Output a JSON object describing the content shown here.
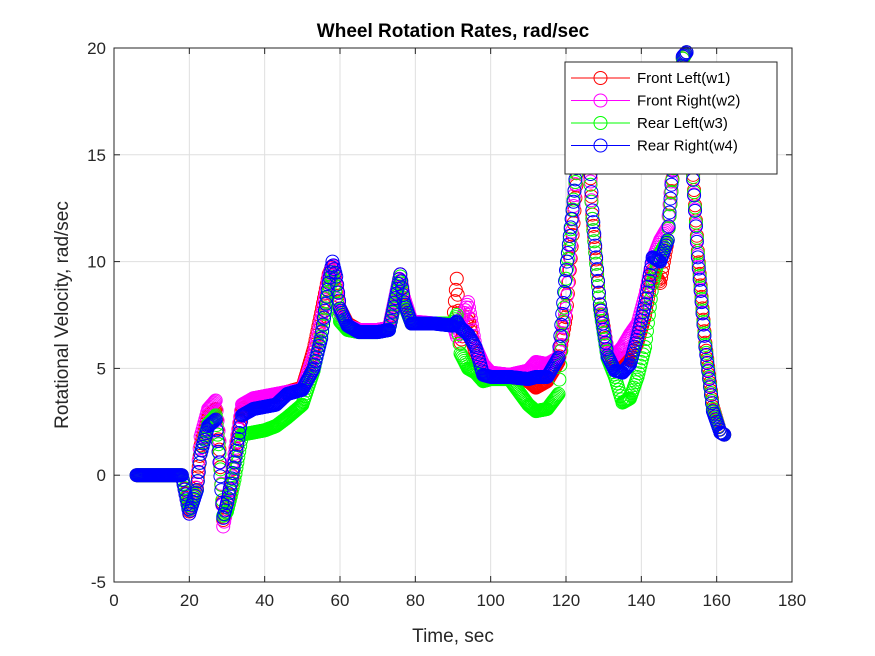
{
  "chart_data": {
    "type": "scatter",
    "title": "Wheel Rotation Rates, rad/sec",
    "xlabel": "Time, sec",
    "ylabel": "Rotational Velocity, rad/sec",
    "xlim": [
      0,
      180
    ],
    "ylim": [
      -5,
      20
    ],
    "xticks": [
      0,
      20,
      40,
      60,
      80,
      100,
      120,
      140,
      160,
      180
    ],
    "yticks": [
      -5,
      0,
      5,
      10,
      15,
      20
    ],
    "xtick_labels": [
      "0",
      "20",
      "40",
      "60",
      "80",
      "100",
      "120",
      "140",
      "160",
      "180"
    ],
    "ytick_labels": [
      "-5",
      "0",
      "5",
      "10",
      "15",
      "20"
    ],
    "grid": true,
    "legend_position": "top-right",
    "marker": "circle",
    "series": [
      {
        "name": "Front Left(w1)",
        "color": "#ff0000",
        "points": [
          [
            6,
            0
          ],
          [
            18,
            0
          ],
          [
            20,
            -1.7
          ],
          [
            22,
            -0.6
          ],
          [
            23,
            1.4
          ],
          [
            25,
            2.8
          ],
          [
            27,
            3.1
          ],
          [
            28,
            1.2
          ],
          [
            29,
            -2.1
          ],
          [
            30,
            -1.6
          ],
          [
            31,
            -0.7
          ],
          [
            32,
            0.6
          ],
          [
            34,
            3.1
          ],
          [
            37,
            3.4
          ],
          [
            40,
            3.6
          ],
          [
            43,
            3.7
          ],
          [
            46,
            3.9
          ],
          [
            50,
            4.1
          ],
          [
            53,
            5.9
          ],
          [
            55,
            7.6
          ],
          [
            57,
            9.4
          ],
          [
            58,
            9.8
          ],
          [
            59,
            9.0
          ],
          [
            60,
            7.8
          ],
          [
            62,
            7.1
          ],
          [
            65,
            6.8
          ],
          [
            70,
            6.8
          ],
          [
            73,
            6.9
          ],
          [
            75,
            8.5
          ],
          [
            76,
            9.4
          ],
          [
            77,
            8.2
          ],
          [
            79,
            7.1
          ],
          [
            85,
            7.1
          ],
          [
            90,
            7.1
          ],
          [
            91,
            9.2
          ],
          [
            92,
            6.2
          ],
          [
            94,
            7.4
          ],
          [
            96,
            5.6
          ],
          [
            98,
            4.8
          ],
          [
            100,
            4.6
          ],
          [
            105,
            4.6
          ],
          [
            110,
            4.4
          ],
          [
            112,
            4.1
          ],
          [
            115,
            4.4
          ],
          [
            118,
            5.3
          ],
          [
            120,
            7.4
          ],
          [
            122,
            11.8
          ],
          [
            124,
            16.5
          ],
          [
            126,
            15.6
          ],
          [
            127,
            12.2
          ],
          [
            129,
            8.0
          ],
          [
            131,
            5.9
          ],
          [
            133,
            5.2
          ],
          [
            135,
            5.5
          ],
          [
            137,
            5.4
          ],
          [
            139,
            6.2
          ],
          [
            141,
            7.5
          ],
          [
            143,
            9.6
          ],
          [
            145,
            9.0
          ],
          [
            147,
            11.0
          ],
          [
            149,
            15.6
          ],
          [
            151,
            19.5
          ],
          [
            152,
            19.8
          ],
          [
            153,
            16.2
          ],
          [
            155,
            10.5
          ],
          [
            157,
            6.2
          ],
          [
            159,
            3.2
          ],
          [
            161,
            2.0
          ],
          [
            162,
            1.9
          ]
        ]
      },
      {
        "name": "Front Right(w2)",
        "color": "#ff00ff",
        "points": [
          [
            6,
            0
          ],
          [
            18,
            0
          ],
          [
            20,
            -1.8
          ],
          [
            22,
            -0.4
          ],
          [
            23,
            1.8
          ],
          [
            25,
            3.1
          ],
          [
            27,
            3.5
          ],
          [
            28,
            1.6
          ],
          [
            29,
            -2.4
          ],
          [
            30,
            -1.5
          ],
          [
            31,
            -0.4
          ],
          [
            32,
            1.0
          ],
          [
            34,
            3.3
          ],
          [
            37,
            3.6
          ],
          [
            40,
            3.7
          ],
          [
            43,
            3.8
          ],
          [
            46,
            3.9
          ],
          [
            50,
            4.0
          ],
          [
            53,
            5.6
          ],
          [
            55,
            7.3
          ],
          [
            57,
            9.3
          ],
          [
            58,
            9.8
          ],
          [
            59,
            8.9
          ],
          [
            60,
            7.6
          ],
          [
            62,
            7.0
          ],
          [
            65,
            6.8
          ],
          [
            70,
            6.8
          ],
          [
            73,
            6.9
          ],
          [
            75,
            8.6
          ],
          [
            76,
            9.4
          ],
          [
            77,
            8.3
          ],
          [
            79,
            7.2
          ],
          [
            85,
            7.1
          ],
          [
            90,
            7.1
          ],
          [
            91,
            6.5
          ],
          [
            92,
            7.1
          ],
          [
            94,
            8.1
          ],
          [
            96,
            6.0
          ],
          [
            98,
            5.2
          ],
          [
            100,
            4.8
          ],
          [
            105,
            4.7
          ],
          [
            110,
            4.9
          ],
          [
            112,
            5.3
          ],
          [
            115,
            5.2
          ],
          [
            118,
            5.5
          ],
          [
            120,
            7.8
          ],
          [
            122,
            12.6
          ],
          [
            124,
            16.7
          ],
          [
            126,
            15.5
          ],
          [
            127,
            12.0
          ],
          [
            129,
            7.8
          ],
          [
            131,
            5.9
          ],
          [
            133,
            5.6
          ],
          [
            135,
            6.0
          ],
          [
            137,
            6.6
          ],
          [
            139,
            7.1
          ],
          [
            141,
            8.4
          ],
          [
            143,
            10.1
          ],
          [
            145,
            11.0
          ],
          [
            147,
            11.6
          ],
          [
            149,
            15.9
          ],
          [
            151,
            19.6
          ],
          [
            152,
            19.8
          ],
          [
            153,
            16.0
          ],
          [
            155,
            10.3
          ],
          [
            157,
            6.0
          ],
          [
            159,
            3.1
          ],
          [
            161,
            2.0
          ],
          [
            162,
            1.9
          ]
        ]
      },
      {
        "name": "Rear Left(w3)",
        "color": "#00ff00",
        "points": [
          [
            6,
            0
          ],
          [
            18,
            0
          ],
          [
            20,
            -1.6
          ],
          [
            22,
            -0.7
          ],
          [
            23,
            1.0
          ],
          [
            25,
            2.4
          ],
          [
            27,
            2.8
          ],
          [
            28,
            1.0
          ],
          [
            29,
            -1.9
          ],
          [
            30,
            -1.7
          ],
          [
            31,
            -1.0
          ],
          [
            32,
            -0.2
          ],
          [
            34,
            1.9
          ],
          [
            37,
            2.0
          ],
          [
            40,
            2.1
          ],
          [
            43,
            2.3
          ],
          [
            46,
            2.7
          ],
          [
            50,
            3.3
          ],
          [
            53,
            4.9
          ],
          [
            55,
            6.5
          ],
          [
            57,
            8.6
          ],
          [
            58,
            9.5
          ],
          [
            59,
            8.3
          ],
          [
            60,
            7.2
          ],
          [
            62,
            6.8
          ],
          [
            65,
            6.7
          ],
          [
            70,
            6.7
          ],
          [
            73,
            6.8
          ],
          [
            75,
            8.4
          ],
          [
            76,
            9.3
          ],
          [
            77,
            8.0
          ],
          [
            79,
            7.1
          ],
          [
            85,
            7.1
          ],
          [
            90,
            7.1
          ],
          [
            91,
            7.5
          ],
          [
            92,
            5.7
          ],
          [
            94,
            5.0
          ],
          [
            96,
            4.8
          ],
          [
            98,
            4.4
          ],
          [
            100,
            4.5
          ],
          [
            105,
            4.5
          ],
          [
            110,
            3.3
          ],
          [
            112,
            3.0
          ],
          [
            115,
            3.1
          ],
          [
            118,
            3.8
          ],
          [
            120,
            9.2
          ],
          [
            122,
            12.9
          ],
          [
            124,
            16.2
          ],
          [
            126,
            15.2
          ],
          [
            127,
            12.0
          ],
          [
            129,
            7.8
          ],
          [
            131,
            5.5
          ],
          [
            133,
            4.6
          ],
          [
            135,
            3.4
          ],
          [
            137,
            3.6
          ],
          [
            139,
            4.6
          ],
          [
            141,
            6.0
          ],
          [
            143,
            9.0
          ],
          [
            145,
            10.4
          ],
          [
            147,
            11.0
          ],
          [
            149,
            15.5
          ],
          [
            151,
            19.5
          ],
          [
            152,
            19.8
          ],
          [
            153,
            16.1
          ],
          [
            155,
            10.4
          ],
          [
            157,
            6.1
          ],
          [
            159,
            3.1
          ],
          [
            161,
            2.0
          ],
          [
            162,
            1.9
          ]
        ]
      },
      {
        "name": "Rear Right(w4)",
        "color": "#0000ff",
        "points": [
          [
            6,
            0
          ],
          [
            18,
            0
          ],
          [
            20,
            -1.8
          ],
          [
            22,
            -0.7
          ],
          [
            23,
            1.0
          ],
          [
            25,
            2.3
          ],
          [
            27,
            2.6
          ],
          [
            28,
            0.6
          ],
          [
            29,
            -2.0
          ],
          [
            30,
            -1.3
          ],
          [
            31,
            -0.4
          ],
          [
            32,
            0.6
          ],
          [
            34,
            2.8
          ],
          [
            37,
            3.1
          ],
          [
            40,
            3.2
          ],
          [
            43,
            3.3
          ],
          [
            46,
            3.8
          ],
          [
            50,
            4.0
          ],
          [
            53,
            5.0
          ],
          [
            55,
            6.4
          ],
          [
            57,
            9.0
          ],
          [
            58,
            10.0
          ],
          [
            59,
            9.3
          ],
          [
            60,
            7.8
          ],
          [
            62,
            7.0
          ],
          [
            65,
            6.7
          ],
          [
            70,
            6.7
          ],
          [
            73,
            6.8
          ],
          [
            75,
            8.5
          ],
          [
            76,
            9.4
          ],
          [
            77,
            8.1
          ],
          [
            79,
            7.1
          ],
          [
            85,
            7.1
          ],
          [
            90,
            7.0
          ],
          [
            91,
            7.2
          ],
          [
            92,
            6.9
          ],
          [
            94,
            6.6
          ],
          [
            96,
            6.0
          ],
          [
            98,
            4.7
          ],
          [
            100,
            4.6
          ],
          [
            105,
            4.6
          ],
          [
            110,
            4.5
          ],
          [
            112,
            4.6
          ],
          [
            115,
            4.6
          ],
          [
            118,
            5.5
          ],
          [
            120,
            9.6
          ],
          [
            122,
            12.8
          ],
          [
            124,
            17.0
          ],
          [
            126,
            15.8
          ],
          [
            127,
            12.4
          ],
          [
            129,
            8.0
          ],
          [
            131,
            5.6
          ],
          [
            133,
            4.9
          ],
          [
            135,
            4.8
          ],
          [
            137,
            5.2
          ],
          [
            139,
            6.5
          ],
          [
            141,
            8.0
          ],
          [
            143,
            10.2
          ],
          [
            145,
            10.0
          ],
          [
            147,
            11.0
          ],
          [
            149,
            16.2
          ],
          [
            151,
            19.6
          ],
          [
            152,
            19.8
          ],
          [
            153,
            16.0
          ],
          [
            155,
            10.2
          ],
          [
            157,
            6.0
          ],
          [
            159,
            3.0
          ],
          [
            161,
            2.0
          ],
          [
            162,
            1.9
          ]
        ]
      }
    ]
  }
}
